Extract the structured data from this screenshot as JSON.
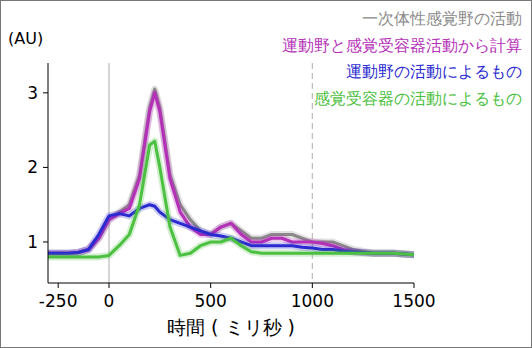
{
  "chart_data": {
    "type": "line",
    "x_label": "時間 ( ミリ秒 )",
    "y_label": "(AU)",
    "x": [
      -300,
      -250,
      -200,
      -150,
      -100,
      -50,
      0,
      50,
      100,
      150,
      200,
      225,
      250,
      300,
      350,
      400,
      450,
      500,
      550,
      600,
      650,
      700,
      750,
      800,
      850,
      900,
      950,
      1000,
      1050,
      1100,
      1150,
      1200,
      1300,
      1400,
      1500
    ],
    "series": [
      {
        "name": "一次体性感覚野の活動",
        "color": "#8a8a8a",
        "values": [
          0.85,
          0.85,
          0.85,
          0.86,
          0.9,
          1.05,
          1.3,
          1.4,
          1.5,
          1.9,
          2.8,
          3.05,
          2.8,
          1.9,
          1.5,
          1.3,
          1.15,
          1.1,
          1.2,
          1.25,
          1.15,
          1.05,
          1.05,
          1.1,
          1.1,
          1.1,
          1.05,
          1.0,
          1.0,
          1.0,
          0.95,
          0.9,
          0.85,
          0.85,
          0.83
        ]
      },
      {
        "name": "運動野と感覚受容器活動から計算",
        "color": "#b530b8",
        "values": [
          0.85,
          0.85,
          0.85,
          0.86,
          0.9,
          1.05,
          1.3,
          1.38,
          1.45,
          1.85,
          2.75,
          3.0,
          2.75,
          1.85,
          1.4,
          1.2,
          1.1,
          1.1,
          1.2,
          1.25,
          1.1,
          1.0,
          1.0,
          1.05,
          1.05,
          1.0,
          1.0,
          1.0,
          0.98,
          0.95,
          0.9,
          0.87,
          0.85,
          0.85,
          0.83
        ]
      },
      {
        "name": "運動野の活動によるもの",
        "color": "#2a2ad0",
        "values": [
          0.85,
          0.85,
          0.85,
          0.86,
          0.9,
          1.1,
          1.35,
          1.38,
          1.35,
          1.45,
          1.5,
          1.48,
          1.4,
          1.3,
          1.25,
          1.2,
          1.15,
          1.1,
          1.08,
          1.05,
          1.0,
          0.95,
          0.95,
          0.95,
          0.95,
          0.95,
          0.93,
          0.92,
          0.9,
          0.9,
          0.88,
          0.87,
          0.85,
          0.85,
          0.83
        ]
      },
      {
        "name": "感覚受容器の活動によるもの",
        "color": "#4cc040",
        "values": [
          0.8,
          0.8,
          0.8,
          0.8,
          0.8,
          0.8,
          0.82,
          0.95,
          1.1,
          1.5,
          2.3,
          2.35,
          2.0,
          1.2,
          0.82,
          0.85,
          0.95,
          1.0,
          1.0,
          1.05,
          0.95,
          0.87,
          0.85,
          0.85,
          0.85,
          0.85,
          0.85,
          0.85,
          0.85,
          0.85,
          0.85,
          0.85,
          0.85,
          0.85,
          0.83
        ]
      }
    ],
    "reference_lines": [
      {
        "x": 0,
        "line_style": "solid"
      },
      {
        "x": 1000,
        "line_style": "dashed"
      }
    ],
    "xlim": [
      -300,
      1500
    ],
    "xticks": [
      -250,
      0,
      500,
      1000,
      1500
    ],
    "ylim": [
      0.45,
      3.4
    ],
    "yticks": [
      1,
      2,
      3
    ],
    "legend": "top-right",
    "grid": false
  }
}
